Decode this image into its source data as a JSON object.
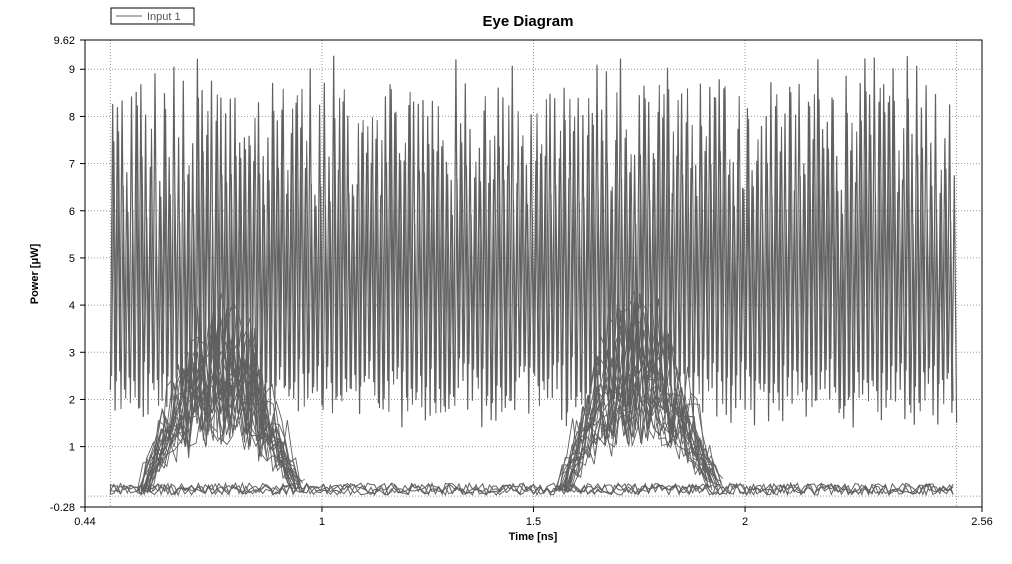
{
  "chart_data": {
    "type": "line",
    "title": "Eye Diagram",
    "xlabel": "Time [ns]",
    "ylabel": "Power [μW]",
    "xlim": [
      0.44,
      2.56
    ],
    "ylim": [
      -0.28,
      9.62
    ],
    "x_ticks": [
      {
        "value": 0.44,
        "label": "0.44"
      },
      {
        "value": 1,
        "label": "1"
      },
      {
        "value": 1.5,
        "label": "1.5"
      },
      {
        "value": 2,
        "label": "2"
      },
      {
        "value": 2.56,
        "label": "2.56"
      }
    ],
    "y_ticks": [
      {
        "value": -0.28,
        "label": "-0.28"
      },
      {
        "value": 1,
        "label": "1"
      },
      {
        "value": 2,
        "label": "2"
      },
      {
        "value": 3,
        "label": "3"
      },
      {
        "value": 4,
        "label": "4"
      },
      {
        "value": 5,
        "label": "5"
      },
      {
        "value": 6,
        "label": "6"
      },
      {
        "value": 7,
        "label": "7"
      },
      {
        "value": 8,
        "label": "8"
      },
      {
        "value": 9,
        "label": "9"
      },
      {
        "value": 9.62,
        "label": "9.62"
      }
    ],
    "grid": true,
    "legend_position": "top-left",
    "series": [
      {
        "name": "Input 1",
        "color": "#606060",
        "x_range": [
          0.5,
          2.5
        ],
        "high_level_range": [
          6.3,
          9.3
        ],
        "low_level_range": [
          1.4,
          2.6
        ],
        "baseline": 0.05,
        "crossing_points": [
          0.73,
          1.72
        ]
      }
    ]
  }
}
